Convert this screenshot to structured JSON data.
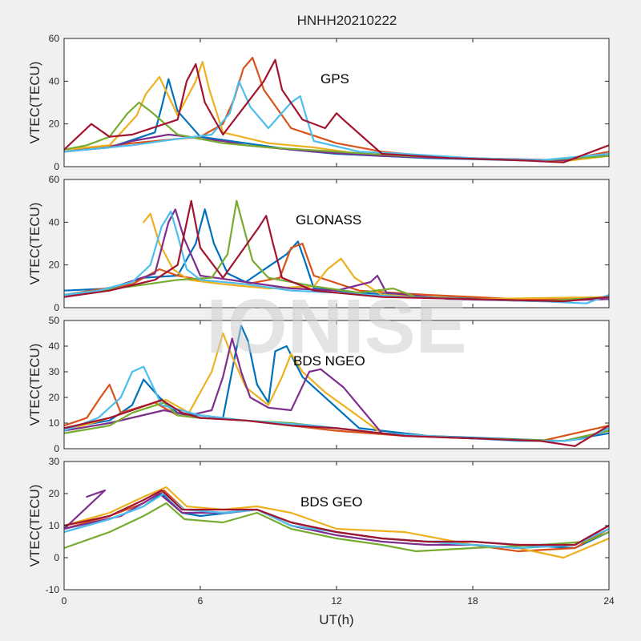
{
  "watermark": "IONISE",
  "figure_title": "HNHH20210222",
  "colors": [
    "#0072BD",
    "#D95319",
    "#EDB120",
    "#7E2F8E",
    "#77AC30",
    "#4DBEEE",
    "#A2142F"
  ],
  "chart_data": [
    {
      "type": "line",
      "panel_label": "GPS",
      "ylabel": "VTEC(TECU)",
      "xlim": [
        0,
        24
      ],
      "ylim": [
        0,
        60
      ],
      "yticks": [
        "0",
        "20",
        "40",
        "60"
      ],
      "xticks": [
        "0",
        "6",
        "12",
        "18",
        "24"
      ],
      "series": [
        {
          "x": [
            0,
            2,
            4,
            4.3,
            4.6,
            5,
            6,
            8,
            10,
            12,
            14,
            16,
            18,
            20,
            22,
            24
          ],
          "y": [
            7,
            9,
            16,
            28,
            41,
            26,
            14,
            11,
            8,
            6,
            5,
            4,
            3.5,
            3,
            2.5,
            6
          ]
        },
        {
          "x": [
            0,
            3,
            5,
            6,
            7,
            7.5,
            7.9,
            8.3,
            8.8,
            10,
            12,
            14,
            16,
            18,
            20,
            22,
            24
          ],
          "y": [
            7,
            11,
            13,
            14,
            20,
            32,
            46,
            51,
            36,
            18,
            11,
            7,
            5,
            4,
            3,
            3,
            7
          ]
        },
        {
          "x": [
            0,
            2,
            3.2,
            3.6,
            4.2,
            5,
            5.8,
            6.1,
            6.4,
            7,
            9,
            11,
            13,
            15,
            18,
            20,
            22,
            24
          ],
          "y": [
            8,
            10,
            24,
            34,
            42,
            24,
            40,
            49,
            36,
            16,
            11,
            9,
            6,
            5,
            4,
            3,
            2.5,
            5
          ]
        },
        {
          "x": [
            0,
            2,
            3,
            4.6,
            5.5,
            6,
            7,
            8,
            9,
            11,
            14,
            17,
            20,
            22,
            24
          ],
          "y": [
            7,
            9,
            12,
            15,
            14,
            13,
            12,
            10,
            9,
            7,
            5,
            4,
            3.5,
            3,
            6
          ]
        },
        {
          "x": [
            0,
            1,
            2,
            2.8,
            3.3,
            3.8,
            5,
            7,
            9,
            12,
            15,
            18,
            21,
            24
          ],
          "y": [
            8,
            10,
            14,
            25,
            30,
            26,
            15,
            11,
            9,
            7,
            5,
            4,
            3,
            5
          ]
        },
        {
          "x": [
            0,
            3,
            5,
            6.5,
            7.3,
            7.7,
            8.2,
            9,
            10,
            10.4,
            10.7,
            11,
            13,
            15,
            18,
            21,
            24
          ],
          "y": [
            7,
            10,
            13,
            15,
            25,
            40,
            28,
            18,
            30,
            33,
            22,
            12,
            7,
            6,
            4,
            3,
            6
          ]
        },
        {
          "x": [
            0,
            1.2,
            2,
            3,
            5,
            5.4,
            5.8,
            6.2,
            7,
            8.8,
            9.3,
            9.6,
            10.5,
            11.5,
            12,
            12.3,
            14,
            17,
            20,
            22,
            24
          ],
          "y": [
            8,
            20,
            14,
            15,
            22,
            40,
            48,
            30,
            15,
            40,
            50,
            36,
            22,
            18,
            25,
            22,
            6,
            4,
            3,
            2,
            10
          ]
        }
      ]
    },
    {
      "type": "line",
      "panel_label": "GLONASS",
      "ylabel": "VTEC(TECU)",
      "xlim": [
        0,
        24
      ],
      "ylim": [
        0,
        60
      ],
      "yticks": [
        "0",
        "20",
        "40",
        "60"
      ],
      "xticks": [
        "0",
        "6",
        "12",
        "18",
        "24"
      ],
      "series": [
        {
          "x": [
            0,
            2,
            3.5,
            5,
            5.8,
            6.2,
            6.6,
            7.2,
            8,
            9.8,
            10.3,
            10.6,
            11,
            13,
            16,
            19,
            22,
            24
          ],
          "y": [
            8,
            9,
            14,
            15,
            30,
            46,
            30,
            16,
            12,
            25,
            31,
            22,
            9,
            7,
            5,
            4,
            3,
            5
          ]
        },
        {
          "x": [
            0,
            3,
            4.2,
            5,
            6,
            8,
            9.5,
            10,
            10.5,
            11,
            13,
            16,
            20,
            24
          ],
          "y": [
            6,
            11,
            18,
            15,
            13,
            11,
            14,
            28,
            30,
            15,
            8,
            6,
            4,
            4
          ]
        },
        {
          "x": [
            3.5,
            3.8,
            4.2,
            4.8,
            5.5,
            7,
            9,
            11,
            11.6,
            12.2,
            12.8,
            14,
            18,
            24
          ],
          "y": [
            40,
            44,
            30,
            18,
            13,
            11,
            9,
            10,
            18,
            23,
            14,
            6,
            4,
            5
          ]
        },
        {
          "x": [
            0,
            2,
            4,
            4.6,
            4.9,
            5.3,
            6,
            8,
            10,
            12,
            13.5,
            13.8,
            14.2,
            17,
            21,
            24
          ],
          "y": [
            5,
            9,
            16,
            40,
            46,
            32,
            15,
            12,
            9,
            8,
            12,
            15,
            7,
            4,
            3,
            4
          ]
        },
        {
          "x": [
            0,
            3,
            5,
            6.5,
            7.2,
            7.6,
            7.9,
            8.3,
            9,
            11,
            13,
            14.5,
            15.5,
            18,
            21,
            24
          ],
          "y": [
            6,
            10,
            13,
            14,
            25,
            50,
            38,
            22,
            14,
            10,
            7,
            9,
            5,
            4,
            3,
            5
          ]
        },
        {
          "x": [
            0,
            1.5,
            3,
            3.8,
            4.3,
            4.7,
            5,
            5.4,
            6,
            8,
            10,
            12,
            15,
            18,
            21,
            23,
            24
          ],
          "y": [
            6,
            8,
            12,
            20,
            38,
            45,
            34,
            18,
            13,
            11,
            8,
            7,
            5,
            4,
            3,
            2,
            6
          ]
        },
        {
          "x": [
            0,
            2,
            4,
            5,
            5.3,
            5.6,
            6,
            7,
            8.6,
            8.9,
            9.2,
            9.6,
            11,
            14,
            18,
            22,
            24
          ],
          "y": [
            5,
            8,
            13,
            20,
            35,
            50,
            28,
            14,
            38,
            43,
            30,
            14,
            8,
            5,
            4,
            3,
            5
          ]
        }
      ]
    },
    {
      "type": "line",
      "panel_label": "BDS NGEO",
      "ylabel": "VTEC(TECU)",
      "xlim": [
        0,
        24
      ],
      "ylim": [
        0,
        50
      ],
      "yticks": [
        "0",
        "10",
        "20",
        "30",
        "40",
        "50"
      ],
      "xticks": [
        "0",
        "6",
        "12",
        "18",
        "24"
      ],
      "series": [
        {
          "x": [
            0,
            2,
            3,
            3.5,
            4.2,
            5,
            7,
            7.5,
            7.8,
            8.1,
            8.5,
            9,
            9.3,
            9.8,
            10.5,
            13,
            16,
            19,
            22,
            24
          ],
          "y": [
            8,
            11,
            17,
            27,
            20,
            14,
            12,
            35,
            48,
            42,
            25,
            18,
            38,
            40,
            28,
            8,
            5,
            4,
            3,
            6
          ]
        },
        {
          "x": [
            0,
            1,
            1.6,
            2,
            2.5,
            4,
            5,
            6,
            8,
            10,
            12,
            15,
            18,
            21,
            24
          ],
          "y": [
            9,
            12,
            20,
            25,
            14,
            18,
            13,
            12,
            11,
            9,
            7,
            5,
            4,
            3,
            9
          ]
        },
        {
          "x": [
            0,
            2,
            4,
            4.5,
            5.5,
            6.5,
            7,
            7.4,
            8,
            9,
            9.6,
            10,
            10.5,
            11.5,
            14,
            18,
            22,
            24
          ],
          "y": [
            7,
            12,
            18,
            19,
            14,
            30,
            45,
            36,
            24,
            17,
            28,
            37,
            30,
            22,
            6,
            4,
            3,
            7
          ]
        },
        {
          "x": [
            0,
            2,
            4.4,
            5.5,
            6.5,
            7,
            7.4,
            7.8,
            8.2,
            9,
            10,
            10.8,
            11.3,
            12.3,
            14,
            18,
            22,
            24
          ],
          "y": [
            7,
            10,
            15,
            13,
            15,
            28,
            43,
            30,
            20,
            16,
            15,
            30,
            31,
            24,
            6,
            4,
            3,
            7
          ]
        },
        {
          "x": [
            0,
            2,
            3,
            4.4,
            5,
            6,
            8,
            10,
            12,
            14,
            18,
            22,
            24
          ],
          "y": [
            6,
            9,
            14,
            18,
            13,
            12,
            11,
            10,
            8,
            6,
            4,
            3,
            7
          ]
        },
        {
          "x": [
            0,
            1.5,
            2.5,
            3,
            3.5,
            4.3,
            6,
            8,
            11,
            14,
            18,
            20,
            22,
            23,
            24
          ],
          "y": [
            7,
            12,
            20,
            30,
            32,
            17,
            13,
            11,
            9,
            6,
            4,
            3,
            3,
            4,
            8
          ]
        },
        {
          "x": [
            0,
            2,
            4.3,
            5.2,
            6,
            8,
            10,
            12,
            15,
            18,
            21,
            22.5,
            24
          ],
          "y": [
            8,
            12,
            19,
            14,
            12,
            11,
            9,
            8,
            5,
            4,
            3,
            1,
            9
          ]
        }
      ]
    },
    {
      "type": "line",
      "panel_label": "BDS GEO",
      "ylabel": "VTEC(TECU)",
      "xlim": [
        0,
        24
      ],
      "ylim": [
        -10,
        30
      ],
      "yticks": [
        "-10",
        "0",
        "10",
        "20",
        "30"
      ],
      "xticks": [
        "0",
        "6",
        "12",
        "18",
        "24"
      ],
      "xlabel": "UT(h)",
      "series": [
        {
          "x": [
            0,
            2,
            3.5,
            4.3,
            5.2,
            6,
            8.5,
            10,
            12,
            14,
            16,
            18,
            20,
            22.5,
            24
          ],
          "y": [
            8,
            12,
            16,
            20,
            14,
            13,
            15,
            11,
            8,
            6,
            5,
            5,
            4,
            3,
            8
          ]
        },
        {
          "x": [
            0,
            2,
            3.5,
            4.4,
            5.3,
            7,
            8.5,
            10,
            12,
            14,
            16,
            18,
            20,
            22.5,
            24
          ],
          "y": [
            9,
            13,
            17,
            21,
            15,
            14,
            15,
            11,
            8,
            6,
            5,
            4,
            2,
            3,
            9
          ]
        },
        {
          "x": [
            0,
            2,
            3.5,
            4.5,
            5.4,
            7,
            8.5,
            10,
            12,
            15,
            18,
            20,
            22,
            24
          ],
          "y": [
            10,
            14,
            19,
            22,
            16,
            15,
            16,
            14,
            9,
            8,
            4,
            3,
            0,
            6
          ]
        },
        {
          "x": [
            1,
            1.8,
            0,
            2.5,
            4.2,
            5.2,
            7,
            8.5,
            10,
            12,
            14,
            16,
            18,
            20,
            22.5,
            24
          ],
          "y": [
            19,
            21,
            9,
            13,
            20,
            14,
            14,
            15,
            10,
            7,
            5,
            4,
            4,
            3,
            4,
            10
          ]
        },
        {
          "x": [
            0,
            2,
            3.5,
            4.5,
            5.3,
            7,
            8.5,
            10,
            12,
            14,
            15.5,
            18,
            21,
            23,
            24
          ],
          "y": [
            3,
            8,
            13,
            17,
            12,
            11,
            14,
            9,
            6,
            4,
            2,
            3,
            4,
            5,
            8
          ]
        },
        {
          "x": [
            0,
            2,
            3.5,
            4.4,
            5.3,
            7,
            8.5,
            10,
            12,
            14,
            16,
            18,
            20,
            22.5,
            24
          ],
          "y": [
            8,
            12,
            16,
            20,
            15,
            14,
            15,
            10,
            8,
            6,
            5,
            4,
            3,
            4,
            9
          ]
        },
        {
          "x": [
            0,
            2,
            3.5,
            4.3,
            5.2,
            7,
            8.5,
            10,
            12,
            14,
            16,
            18,
            20,
            22.5,
            24
          ],
          "y": [
            10,
            13,
            18,
            21,
            15,
            15,
            15,
            11,
            8,
            6,
            5,
            5,
            4,
            4,
            10
          ]
        }
      ]
    }
  ]
}
